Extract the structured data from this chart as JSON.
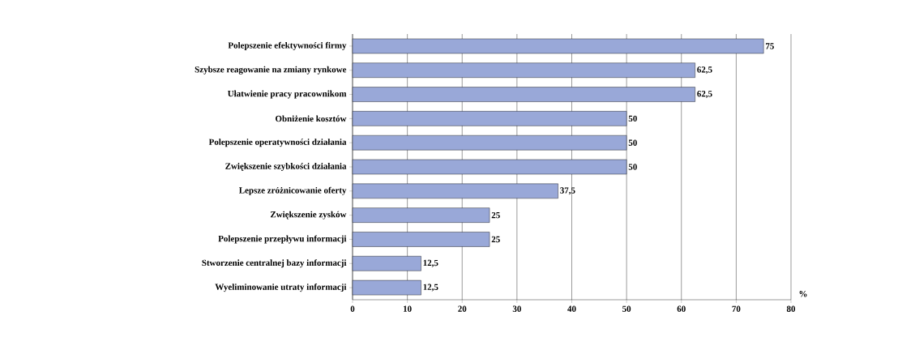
{
  "chart_data": {
    "type": "bar",
    "orientation": "horizontal",
    "xlabel": "%",
    "categories": [
      "Polepszenie efektywności firmy",
      "Szybsze reagowanie na zmiany rynkowe",
      "Ułatwienie pracy pracownikom",
      "Obniżenie kosztów",
      "Polepszenie operatywności działania",
      "Zwiększenie szybkości działania",
      "Lepsze zróżnicowanie oferty",
      "Zwiększenie zysków",
      "Polepszenie przepływu informacji",
      "Stworzenie centralnej bazy informacji",
      "Wyeliminowanie utraty informacji"
    ],
    "values": [
      75,
      62.5,
      62.5,
      50,
      50,
      50,
      37.5,
      25,
      25,
      12.5,
      12.5
    ],
    "value_labels": [
      "75",
      "62,5",
      "62,5",
      "50",
      "50",
      "50",
      "37,5",
      "25",
      "25",
      "12,5",
      "12,5"
    ],
    "color": "#99a8d8",
    "xlim": [
      0,
      80
    ],
    "xticks": [
      0,
      10,
      20,
      30,
      40,
      50,
      60,
      70,
      80
    ],
    "grid": "x"
  }
}
